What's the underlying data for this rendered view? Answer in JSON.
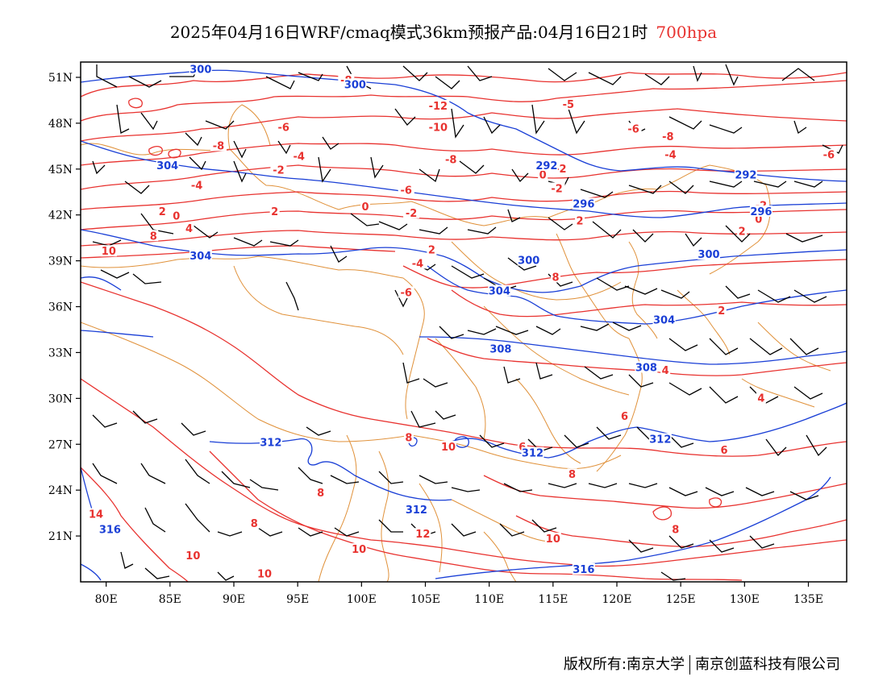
{
  "title": {
    "main": "2025年04月16日WRF/cmaq模式36km预报产品:04月16日21时",
    "level": "700hpa"
  },
  "axes": {
    "lat_labels": [
      "51N",
      "48N",
      "45N",
      "42N",
      "39N",
      "36N",
      "33N",
      "30N",
      "27N",
      "24N",
      "21N"
    ],
    "lat_values": [
      51,
      48,
      45,
      42,
      39,
      36,
      33,
      30,
      27,
      24,
      21
    ],
    "lon_labels": [
      "80E",
      "85E",
      "90E",
      "95E",
      "100E",
      "105E",
      "110E",
      "115E",
      "120E",
      "125E",
      "130E",
      "135E"
    ],
    "lon_values": [
      80,
      85,
      90,
      95,
      100,
      105,
      110,
      115,
      120,
      125,
      130,
      135
    ],
    "lon_range": [
      78,
      138
    ],
    "lat_range": [
      18,
      52
    ]
  },
  "colors": {
    "temperature": "#e8322f",
    "height": "#1a3fd6",
    "boundary": "#e0913a",
    "wind": "#000000"
  },
  "temperature_labels": [
    {
      "text": "-8",
      "lon": 98.8,
      "lat": 50.8
    },
    {
      "text": "-12",
      "lon": 106,
      "lat": 49.1
    },
    {
      "text": "-5",
      "lon": 116.2,
      "lat": 49.2
    },
    {
      "text": "-6",
      "lon": 93.9,
      "lat": 47.7
    },
    {
      "text": "-10",
      "lon": 106,
      "lat": 47.7
    },
    {
      "text": "-6",
      "lon": 121.3,
      "lat": 47.6
    },
    {
      "text": "-8",
      "lon": 124,
      "lat": 47.1
    },
    {
      "text": "-8",
      "lon": 88.8,
      "lat": 46.5
    },
    {
      "text": "-4",
      "lon": 95.1,
      "lat": 45.8
    },
    {
      "text": "-8",
      "lon": 107,
      "lat": 45.6
    },
    {
      "text": "-4",
      "lon": 124.2,
      "lat": 45.9
    },
    {
      "text": "-6",
      "lon": 136.6,
      "lat": 45.9
    },
    {
      "text": "-2",
      "lon": 93.5,
      "lat": 44.9
    },
    {
      "text": "-2",
      "lon": 115.6,
      "lat": 45.0
    },
    {
      "text": "0",
      "lon": 114.2,
      "lat": 44.6
    },
    {
      "text": "-4",
      "lon": 87.1,
      "lat": 43.9
    },
    {
      "text": "-6",
      "lon": 103.5,
      "lat": 43.6
    },
    {
      "text": "-2",
      "lon": 115.3,
      "lat": 43.7
    },
    {
      "text": "2",
      "lon": 84.4,
      "lat": 42.2
    },
    {
      "text": "0",
      "lon": 85.5,
      "lat": 41.9
    },
    {
      "text": "2",
      "lon": 93.2,
      "lat": 42.2
    },
    {
      "text": "0",
      "lon": 100.3,
      "lat": 42.5
    },
    {
      "text": "-2",
      "lon": 103.9,
      "lat": 42.1
    },
    {
      "text": "2",
      "lon": 117.1,
      "lat": 41.6
    },
    {
      "text": "-2",
      "lon": 131.3,
      "lat": 42.6
    },
    {
      "text": "0",
      "lon": 131.1,
      "lat": 41.7
    },
    {
      "text": "4",
      "lon": 86.5,
      "lat": 41.1
    },
    {
      "text": "8",
      "lon": 83.7,
      "lat": 40.6
    },
    {
      "text": "2",
      "lon": 105.5,
      "lat": 39.7
    },
    {
      "text": "2",
      "lon": 129.8,
      "lat": 40.9
    },
    {
      "text": "10",
      "lon": 80.2,
      "lat": 39.6
    },
    {
      "text": "-4",
      "lon": 104.4,
      "lat": 38.8
    },
    {
      "text": "8",
      "lon": 115.2,
      "lat": 37.9
    },
    {
      "text": "-6",
      "lon": 103.5,
      "lat": 36.9
    },
    {
      "text": "2",
      "lon": 128.2,
      "lat": 35.7
    },
    {
      "text": "4",
      "lon": 123.8,
      "lat": 31.8
    },
    {
      "text": "4",
      "lon": 131.3,
      "lat": 30.0
    },
    {
      "text": "6",
      "lon": 120.6,
      "lat": 28.8
    },
    {
      "text": "8",
      "lon": 103.7,
      "lat": 27.4
    },
    {
      "text": "10",
      "lon": 106.8,
      "lat": 26.8
    },
    {
      "text": "6",
      "lon": 112.6,
      "lat": 26.8
    },
    {
      "text": "6",
      "lon": 128.4,
      "lat": 26.6
    },
    {
      "text": "8",
      "lon": 116.5,
      "lat": 25.0
    },
    {
      "text": "8",
      "lon": 96.8,
      "lat": 23.8
    },
    {
      "text": "14",
      "lon": 79.2,
      "lat": 22.4
    },
    {
      "text": "8",
      "lon": 91.6,
      "lat": 21.8
    },
    {
      "text": "12",
      "lon": 104.8,
      "lat": 21.1
    },
    {
      "text": "8",
      "lon": 124.6,
      "lat": 21.4
    },
    {
      "text": "10",
      "lon": 115.0,
      "lat": 20.8
    },
    {
      "text": "10",
      "lon": 99.8,
      "lat": 20.1
    },
    {
      "text": "10",
      "lon": 86.8,
      "lat": 19.7
    },
    {
      "text": "10",
      "lon": 92.4,
      "lat": 18.5
    }
  ],
  "height_labels": [
    {
      "text": "300",
      "lon": 87.4,
      "lat": 51.5
    },
    {
      "text": "300",
      "lon": 99.5,
      "lat": 50.5
    },
    {
      "text": "304",
      "lon": 84.8,
      "lat": 45.2
    },
    {
      "text": "292",
      "lon": 114.5,
      "lat": 45.2
    },
    {
      "text": "292",
      "lon": 130.1,
      "lat": 44.6
    },
    {
      "text": "296",
      "lon": 117.4,
      "lat": 42.7
    },
    {
      "text": "296",
      "lon": 131.3,
      "lat": 42.2
    },
    {
      "text": "304",
      "lon": 87.4,
      "lat": 39.3
    },
    {
      "text": "300",
      "lon": 113.1,
      "lat": 39.0
    },
    {
      "text": "300",
      "lon": 127.2,
      "lat": 39.4
    },
    {
      "text": "304",
      "lon": 110.8,
      "lat": 37.0
    },
    {
      "text": "304",
      "lon": 123.7,
      "lat": 35.1
    },
    {
      "text": "308",
      "lon": 110.9,
      "lat": 33.2
    },
    {
      "text": "308",
      "lon": 122.3,
      "lat": 32.0
    },
    {
      "text": "312",
      "lon": 92.9,
      "lat": 27.1
    },
    {
      "text": "312",
      "lon": 113.4,
      "lat": 26.4
    },
    {
      "text": "312",
      "lon": 123.4,
      "lat": 27.3
    },
    {
      "text": "312",
      "lon": 104.3,
      "lat": 22.7
    },
    {
      "text": "316",
      "lon": 80.3,
      "lat": 21.4
    },
    {
      "text": "316",
      "lon": 117.4,
      "lat": 18.8
    }
  ],
  "footer": {
    "left": "版权所有:南京大学",
    "right": "南京创蓝科技有限公司"
  }
}
